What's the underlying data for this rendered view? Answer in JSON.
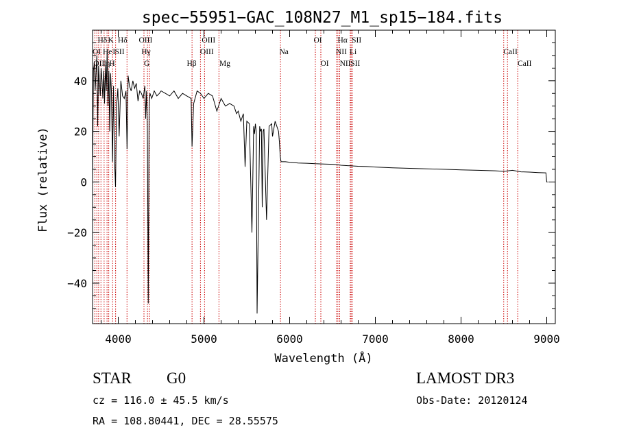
{
  "chart_data": {
    "type": "line",
    "title": "spec−55951−GAC_108N27_M1_sp15−184.fits",
    "xlabel": "Wavelength (Å)",
    "ylabel": "Flux (relative)",
    "xlim": [
      3700,
      9100
    ],
    "ylim": [
      -56,
      60
    ],
    "x_ticks": [
      4000,
      5000,
      6000,
      7000,
      8000,
      9000
    ],
    "y_ticks": [
      -40,
      -20,
      0,
      20,
      40
    ],
    "y_tick_labels": [
      "−40",
      "−20",
      "0",
      "20",
      "40"
    ],
    "series": [
      {
        "name": "spectrum",
        "x": [
          3700,
          3710,
          3720,
          3730,
          3740,
          3750,
          3760,
          3770,
          3780,
          3790,
          3800,
          3810,
          3820,
          3830,
          3840,
          3850,
          3860,
          3870,
          3880,
          3890,
          3900,
          3910,
          3920,
          3933,
          3945,
          3955,
          3968,
          3980,
          3995,
          4010,
          4030,
          4050,
          4070,
          4090,
          4102,
          4115,
          4130,
          4150,
          4170,
          4190,
          4210,
          4230,
          4250,
          4270,
          4290,
          4310,
          4320,
          4330,
          4340,
          4350,
          4360,
          4370,
          4390,
          4420,
          4450,
          4480,
          4500,
          4550,
          4600,
          4650,
          4700,
          4750,
          4800,
          4850,
          4861,
          4880,
          4920,
          4960,
          5000,
          5050,
          5100,
          5150,
          5200,
          5250,
          5300,
          5350,
          5380,
          5400,
          5430,
          5460,
          5480,
          5500,
          5530,
          5560,
          5580,
          5590,
          5600,
          5610,
          5620,
          5650,
          5660,
          5670,
          5680,
          5690,
          5700,
          5730,
          5760,
          5790,
          5800,
          5830,
          5850,
          5870,
          5880,
          5890,
          5900,
          5920,
          5950,
          6000,
          6100,
          6200,
          6300,
          6400,
          6500,
          6563,
          6600,
          6700,
          6800,
          6900,
          7000,
          7200,
          7400,
          7600,
          7800,
          8000,
          8200,
          8400,
          8500,
          8600,
          8700,
          8800,
          8900,
          8990,
          9000,
          9010
        ],
        "values": [
          0,
          44,
          47,
          36,
          43,
          50,
          22,
          46,
          40,
          34,
          45,
          40,
          33,
          44,
          31,
          46,
          36,
          52,
          30,
          44,
          20,
          43,
          36,
          8,
          38,
          10,
          -2,
          30,
          37,
          18,
          40,
          34,
          33,
          36,
          13,
          42,
          38,
          36,
          40,
          37,
          39,
          32,
          36,
          35,
          33,
          38,
          25,
          36,
          20,
          -48,
          30,
          35,
          33,
          36,
          34,
          35,
          36,
          35,
          34,
          36,
          33,
          35,
          34,
          33,
          14,
          31,
          36,
          35,
          33,
          35,
          34,
          28,
          33,
          30,
          31,
          30,
          27,
          28,
          24,
          27,
          6,
          24,
          23,
          -20,
          22,
          19,
          23,
          20,
          -52,
          22,
          20,
          21,
          -10,
          20,
          21,
          -15,
          22,
          23,
          18,
          24,
          22,
          20,
          16,
          10,
          8,
          8,
          8,
          7.8,
          7.5,
          7.4,
          7.2,
          7.1,
          7.0,
          6.8,
          6.6,
          6.4,
          6.2,
          6.1,
          5.9,
          5.6,
          5.4,
          5.2,
          5.0,
          4.8,
          4.6,
          4.4,
          4.2,
          4.6,
          4.0,
          3.9,
          3.7,
          3.6,
          0,
          0
        ]
      }
    ],
    "lines_row1": [
      {
        "label": "Hδ",
        "wave": 3760
      },
      {
        "label": "K",
        "wave": 3880
      },
      {
        "label": "Hδ",
        "wave": 3995
      },
      {
        "label": "OIII",
        "wave": 4240
      },
      {
        "label": "OIII",
        "wave": 4975
      },
      {
        "label": "OI",
        "wave": 6280
      },
      {
        "label": "Hα",
        "wave": 6560
      },
      {
        "label": "SII",
        "wave": 6725
      }
    ],
    "lines_row2": [
      {
        "label": "OI",
        "wave": 3700
      },
      {
        "label": "He",
        "wave": 3820
      },
      {
        "label": "I",
        "wave": 3935
      },
      {
        "label": "SII",
        "wave": 3960
      },
      {
        "label": "Hγ",
        "wave": 4270
      },
      {
        "label": "OIII",
        "wave": 4955
      },
      {
        "label": "Na",
        "wave": 5880
      },
      {
        "label": "NII",
        "wave": 6540
      },
      {
        "label": "Li",
        "wave": 6700
      },
      {
        "label": "CaII",
        "wave": 8495
      }
    ],
    "lines_row3": [
      {
        "label": "OII",
        "wave": 3710
      },
      {
        "label": "I",
        "wave": 3830
      },
      {
        "label": "η",
        "wave": 3855
      },
      {
        "label": "H",
        "wave": 3895
      },
      {
        "label": "G",
        "wave": 4300
      },
      {
        "label": "Hβ",
        "wave": 4800
      },
      {
        "label": "Mg",
        "wave": 5180
      },
      {
        "label": "OI",
        "wave": 6360
      },
      {
        "label": "NII",
        "wave": 6585
      },
      {
        "label": "SII",
        "wave": 6710
      },
      {
        "label": "CaII",
        "wave": 8660
      }
    ],
    "dotted_lines": [
      3727,
      3750,
      3771,
      3798,
      3835,
      3869,
      3889,
      3934,
      3969,
      4102,
      4300,
      4341,
      4363,
      4861,
      4959,
      5007,
      5175,
      5893,
      6300,
      6364,
      6548,
      6563,
      6584,
      6707,
      6717,
      6731,
      8498,
      8542,
      8662
    ]
  },
  "info": {
    "class": "STAR",
    "subclass": "G0",
    "survey": "LAMOST DR3",
    "cz": "cz = 116.0 ± 45.5 km/s",
    "obs_date": "Obs-Date: 20120124",
    "coords": "RA = 108.80441, DEC =  28.55575"
  },
  "colors": {
    "line_marker": "#cc0000",
    "spectrum": "#000000",
    "axis": "#000000"
  }
}
